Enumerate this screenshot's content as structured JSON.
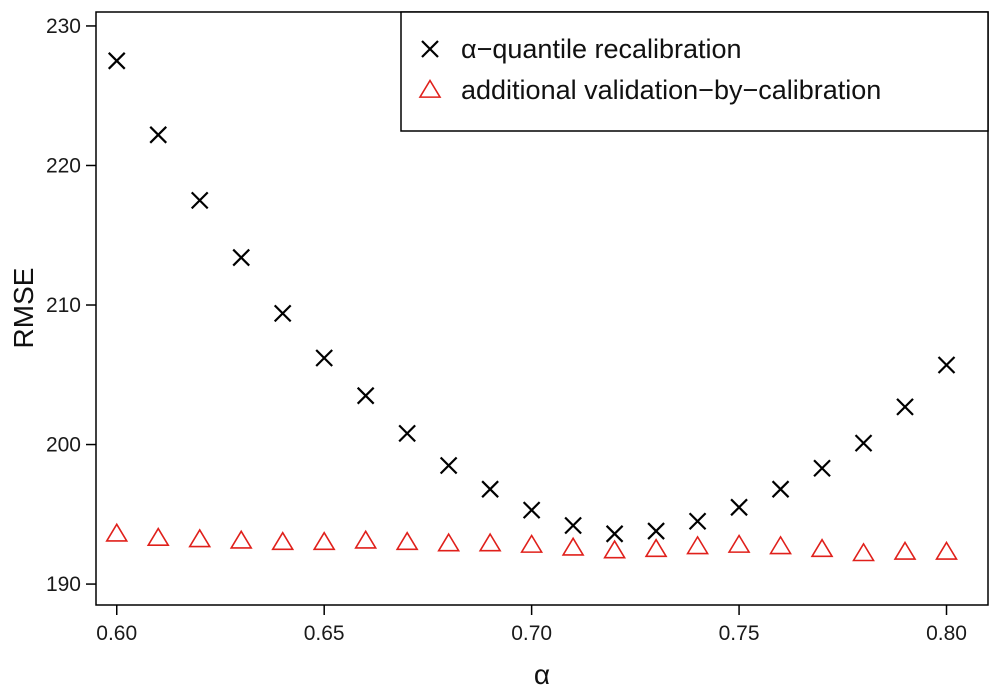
{
  "chart_data": {
    "type": "scatter",
    "title": "",
    "xlabel": "α",
    "ylabel": "RMSE",
    "xlim": [
      0.595,
      0.81
    ],
    "ylim": [
      188.5,
      231
    ],
    "xticks": [
      0.6,
      0.65,
      0.7,
      0.75,
      0.8
    ],
    "xtick_labels": [
      "0.60",
      "0.65",
      "0.70",
      "0.75",
      "0.80"
    ],
    "yticks": [
      190,
      200,
      210,
      220,
      230
    ],
    "ytick_labels": [
      "190",
      "200",
      "210",
      "220",
      "230"
    ],
    "grid": false,
    "legend_position": "top-right",
    "x": [
      0.6,
      0.61,
      0.62,
      0.63,
      0.64,
      0.65,
      0.66,
      0.67,
      0.68,
      0.69,
      0.7,
      0.71,
      0.72,
      0.73,
      0.74,
      0.75,
      0.76,
      0.77,
      0.78,
      0.79,
      0.8
    ],
    "series": [
      {
        "name": "α−quantile recalibration",
        "marker": "cross",
        "color": "#000000",
        "values": [
          227.5,
          222.2,
          217.5,
          213.4,
          209.4,
          206.2,
          203.5,
          200.8,
          198.5,
          196.8,
          195.3,
          194.2,
          193.6,
          193.8,
          194.5,
          195.5,
          196.8,
          198.3,
          200.1,
          202.7,
          205.7
        ]
      },
      {
        "name": "additional validation−by−calibration",
        "marker": "triangle",
        "color": "#e0201b",
        "values": [
          193.6,
          193.3,
          193.2,
          193.1,
          193.0,
          193.0,
          193.1,
          193.0,
          192.9,
          192.9,
          192.8,
          192.6,
          192.4,
          192.5,
          192.7,
          192.8,
          192.7,
          192.5,
          192.2,
          192.3,
          192.3
        ]
      }
    ]
  }
}
